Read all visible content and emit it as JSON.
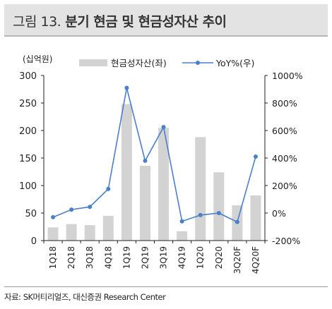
{
  "figure": {
    "label": "그림 13.",
    "title": "분기 현금 및 현금성자산 추이",
    "source": "자료: SK머티리얼즈, 대신증권 Research Center"
  },
  "chart_data": {
    "type": "bar",
    "categories": [
      "1Q18",
      "2Q18",
      "3Q18",
      "4Q18",
      "1Q19",
      "2Q19",
      "3Q19",
      "4Q19",
      "1Q20",
      "2Q20",
      "3Q20F",
      "4Q20F"
    ],
    "series": [
      {
        "name": "현금성자산(좌)",
        "type": "bar",
        "axis": "left",
        "values": [
          24,
          30,
          28,
          45,
          248,
          136,
          205,
          17,
          188,
          124,
          64,
          82
        ],
        "color": "#d3d3d3"
      },
      {
        "name": "YoY%(우)",
        "type": "line",
        "axis": "right",
        "values": [
          -30,
          25,
          45,
          175,
          910,
          380,
          625,
          -60,
          -15,
          0,
          -65,
          410
        ],
        "color": "#4a7fc9"
      }
    ],
    "ylabel_left": "(십억원)",
    "ylim_left": [
      0,
      300
    ],
    "yticks_left": [
      0,
      50,
      100,
      150,
      200,
      250,
      300
    ],
    "ylim_right": [
      -200,
      1000
    ],
    "yticks_right": [
      -200,
      0,
      200,
      400,
      600,
      800,
      1000
    ],
    "yticklabels_right": [
      "-200%",
      "0%",
      "200%",
      "400%",
      "600%",
      "800%",
      "1000%"
    ],
    "grid": false,
    "legend": "top"
  }
}
